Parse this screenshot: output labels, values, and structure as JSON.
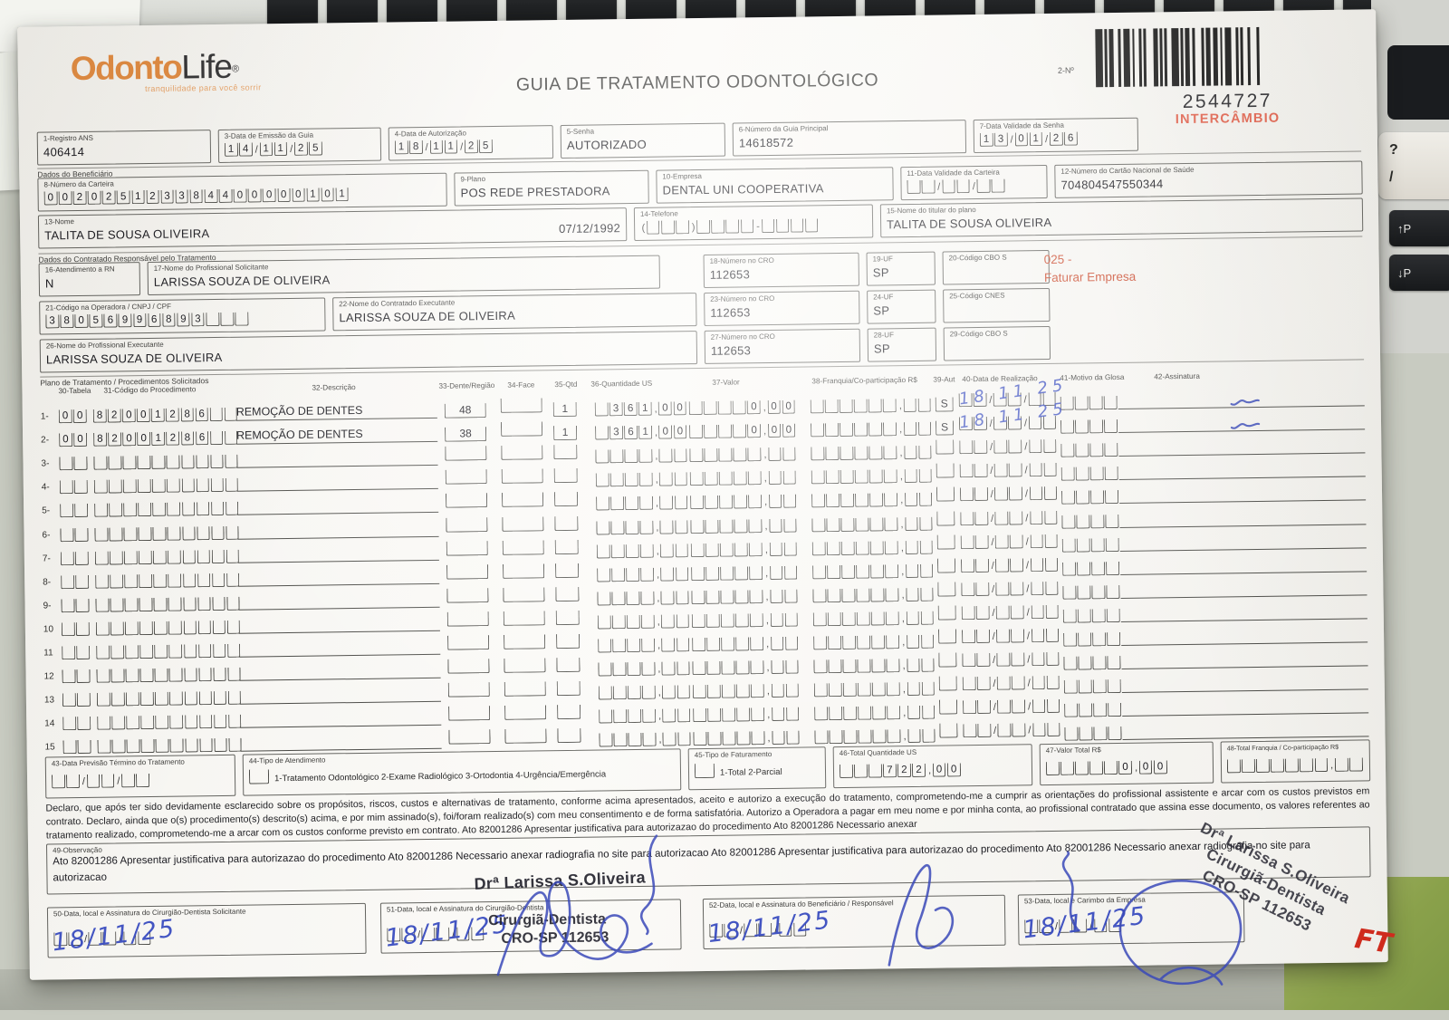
{
  "ambiente": {
    "ft_mark": "FT",
    "tecla_interrogacao": "?",
    "tecla_barra": "/",
    "tecla_pgup": "↑P",
    "tecla_pgdn": "↓P"
  },
  "header": {
    "logo_odonto": "Odonto",
    "logo_life": "Life",
    "logo_reg": "®",
    "logo_tagline": "tranquilidade para você sorrir",
    "title": "GUIA DE TRATAMENTO ODONTOLÓGICO",
    "guide_number_label": "2-Nº",
    "guide_number": "2544727",
    "intercambio": "INTERCÂMBIO"
  },
  "identificacao": {
    "registro_ans": {
      "label": "1-Registro ANS",
      "value": "406414"
    },
    "data_emissao": {
      "label": "3-Data de Emissão da Guia",
      "comb": "14/11/25"
    },
    "data_autorizacao": {
      "label": "4-Data de Autorização",
      "comb": "18/11/25"
    },
    "senha": {
      "label": "5-Senha",
      "value": "AUTORIZADO"
    },
    "guia_principal": {
      "label": "6-Número da Guia Principal",
      "value": "14618572"
    },
    "validade_senha": {
      "label": "7-Data Validade da Senha",
      "comb": "13/01/26"
    }
  },
  "beneficiario": {
    "section_label": "Dados do Beneficiário",
    "carteira": {
      "label": "8-Número da Carteira",
      "comb": "002025123384400000101"
    },
    "plano": {
      "label": "9-Plano",
      "value": "POS REDE PRESTADORA"
    },
    "empresa": {
      "label": "10-Empresa",
      "value": "DENTAL UNI  COOPERATIVA"
    },
    "validade_carteira": {
      "label": "11-Data Validade da Carteira",
      "comb": "__/__/__"
    },
    "cartao_saude": {
      "label": "12-Número do Cartão Nacional de Saúde",
      "value": "704804547550344"
    },
    "nome": {
      "label": "13-Nome",
      "value": "TALITA DE SOUSA OLIVEIRA",
      "nascimento": "07/12/1992"
    },
    "telefone": {
      "label": "14-Telefone",
      "comb": "(___)____-____"
    },
    "titular": {
      "label": "15-Nome do titular do plano",
      "value": "TALITA DE SOUSA OLIVEIRA"
    }
  },
  "contratado": {
    "section_label": "Dados do Contratado Responsável pelo Tratamento",
    "rn": {
      "label": "16-Atendimento a RN",
      "value": "N"
    },
    "solicitante": {
      "label": "17-Nome do Profissional Solicitante",
      "value": "LARISSA SOUZA DE OLIVEIRA"
    },
    "cro18": {
      "label": "18-Número no CRO",
      "value": "112653"
    },
    "uf19": {
      "label": "19-UF",
      "value": "SP"
    },
    "cbo20": {
      "label": "20-Código CBO S",
      "value": ""
    },
    "faturar_code": "025 -",
    "faturar_text": "Faturar Empresa",
    "codigo_operadora": {
      "label": "21-Código na Operadora / CNPJ / CPF",
      "comb": "38056996893___"
    },
    "executante": {
      "label": "22-Nome do Contratado Executante",
      "value": "LARISSA SOUZA DE OLIVEIRA"
    },
    "cro23": {
      "label": "23-Número no CRO",
      "value": "112653"
    },
    "uf24": {
      "label": "24-UF",
      "value": "SP"
    },
    "cnes25": {
      "label": "25-Código CNES",
      "value": ""
    },
    "prof_executante": {
      "label": "26-Nome do Profissional Executante",
      "value": "LARISSA SOUZA DE OLIVEIRA"
    },
    "cro27": {
      "label": "27-Número no CRO",
      "value": "112653"
    },
    "uf28": {
      "label": "28-UF",
      "value": "SP"
    },
    "cbo29": {
      "label": "29-Código CBO S",
      "value": ""
    }
  },
  "tratamento": {
    "section_label": "Plano de Tratamento / Procedimentos Solicitados",
    "headers": [
      "30-Tabela",
      "31-Código do Procedimento",
      "32-Descrição",
      "33-Dente/Região",
      "34-Face",
      "35-Qtd",
      "36-Quantidade US",
      "37-Valor",
      "38-Franquia/Co-participação R$",
      "39-Aut",
      "40-Data de Realização",
      "41-Motivo da Glosa",
      "42-Assinatura"
    ],
    "rows": [
      {
        "num": "1-",
        "tabela": "00",
        "codigo": "82001286__",
        "descricao": "REMOÇÃO DE DENTES",
        "dente": "48",
        "face": "",
        "qtd": "1",
        "qtd_us": "_361,00",
        "valor": "____0,00",
        "franquia": "______,__",
        "aut": "S",
        "data": "__/__/__",
        "data_manuscrita": "18 11 25",
        "glosa": "____",
        "assinado": true
      },
      {
        "num": "2-",
        "tabela": "00",
        "codigo": "82001286__",
        "descricao": "REMOÇÃO DE DENTES",
        "dente": "38",
        "face": "",
        "qtd": "1",
        "qtd_us": "_361,00",
        "valor": "____0,00",
        "franquia": "______,__",
        "aut": "S",
        "data": "__/__/__",
        "data_manuscrita": "18 11 25",
        "glosa": "____",
        "assinado": true
      },
      {
        "num": "3-",
        "tabela": "__",
        "codigo": "__________",
        "descricao": "",
        "dente": "",
        "face": "",
        "qtd": "",
        "qtd_us": "____,__",
        "valor": "_____,__",
        "franquia": "______,__",
        "aut": "",
        "data": "__/__/__",
        "data_manuscrita": "",
        "glosa": "____",
        "assinado": false
      },
      {
        "num": "4-",
        "tabela": "__",
        "codigo": "__________",
        "descricao": "",
        "dente": "",
        "face": "",
        "qtd": "",
        "qtd_us": "____,__",
        "valor": "_____,__",
        "franquia": "______,__",
        "aut": "",
        "data": "__/__/__",
        "data_manuscrita": "",
        "glosa": "____",
        "assinado": false
      },
      {
        "num": "5-",
        "tabela": "__",
        "codigo": "__________",
        "descricao": "",
        "dente": "",
        "face": "",
        "qtd": "",
        "qtd_us": "____,__",
        "valor": "_____,__",
        "franquia": "______,__",
        "aut": "",
        "data": "__/__/__",
        "data_manuscrita": "",
        "glosa": "____",
        "assinado": false
      },
      {
        "num": "6-",
        "tabela": "__",
        "codigo": "__________",
        "descricao": "",
        "dente": "",
        "face": "",
        "qtd": "",
        "qtd_us": "____,__",
        "valor": "_____,__",
        "franquia": "______,__",
        "aut": "",
        "data": "__/__/__",
        "data_manuscrita": "",
        "glosa": "____",
        "assinado": false
      },
      {
        "num": "7-",
        "tabela": "__",
        "codigo": "__________",
        "descricao": "",
        "dente": "",
        "face": "",
        "qtd": "",
        "qtd_us": "____,__",
        "valor": "_____,__",
        "franquia": "______,__",
        "aut": "",
        "data": "__/__/__",
        "data_manuscrita": "",
        "glosa": "____",
        "assinado": false
      },
      {
        "num": "8-",
        "tabela": "__",
        "codigo": "__________",
        "descricao": "",
        "dente": "",
        "face": "",
        "qtd": "",
        "qtd_us": "____,__",
        "valor": "_____,__",
        "franquia": "______,__",
        "aut": "",
        "data": "__/__/__",
        "data_manuscrita": "",
        "glosa": "____",
        "assinado": false
      },
      {
        "num": "9-",
        "tabela": "__",
        "codigo": "__________",
        "descricao": "",
        "dente": "",
        "face": "",
        "qtd": "",
        "qtd_us": "____,__",
        "valor": "_____,__",
        "franquia": "______,__",
        "aut": "",
        "data": "__/__/__",
        "data_manuscrita": "",
        "glosa": "____",
        "assinado": false
      },
      {
        "num": "10",
        "tabela": "__",
        "codigo": "__________",
        "descricao": "",
        "dente": "",
        "face": "",
        "qtd": "",
        "qtd_us": "____,__",
        "valor": "_____,__",
        "franquia": "______,__",
        "aut": "",
        "data": "__/__/__",
        "data_manuscrita": "",
        "glosa": "____",
        "assinado": false
      },
      {
        "num": "11",
        "tabela": "__",
        "codigo": "__________",
        "descricao": "",
        "dente": "",
        "face": "",
        "qtd": "",
        "qtd_us": "____,__",
        "valor": "_____,__",
        "franquia": "______,__",
        "aut": "",
        "data": "__/__/__",
        "data_manuscrita": "",
        "glosa": "____",
        "assinado": false
      },
      {
        "num": "12",
        "tabela": "__",
        "codigo": "__________",
        "descricao": "",
        "dente": "",
        "face": "",
        "qtd": "",
        "qtd_us": "____,__",
        "valor": "_____,__",
        "franquia": "______,__",
        "aut": "",
        "data": "__/__/__",
        "data_manuscrita": "",
        "glosa": "____",
        "assinado": false
      },
      {
        "num": "13",
        "tabela": "__",
        "codigo": "__________",
        "descricao": "",
        "dente": "",
        "face": "",
        "qtd": "",
        "qtd_us": "____,__",
        "valor": "_____,__",
        "franquia": "______,__",
        "aut": "",
        "data": "__/__/__",
        "data_manuscrita": "",
        "glosa": "____",
        "assinado": false
      },
      {
        "num": "14",
        "tabela": "__",
        "codigo": "__________",
        "descricao": "",
        "dente": "",
        "face": "",
        "qtd": "",
        "qtd_us": "____,__",
        "valor": "_____,__",
        "franquia": "______,__",
        "aut": "",
        "data": "__/__/__",
        "data_manuscrita": "",
        "glosa": "____",
        "assinado": false
      },
      {
        "num": "15",
        "tabela": "__",
        "codigo": "__________",
        "descricao": "",
        "dente": "",
        "face": "",
        "qtd": "",
        "qtd_us": "____,__",
        "valor": "_____,__",
        "franquia": "______,__",
        "aut": "",
        "data": "__/__/__",
        "data_manuscrita": "",
        "glosa": "____",
        "assinado": false
      }
    ]
  },
  "totais": {
    "previsao": {
      "label": "43-Data Previsão Término do Tratamento",
      "comb": "__/__/__"
    },
    "tipo_atendimento": {
      "label": "44-Tipo de Atendimento",
      "options": "1-Tratamento Odontológico  2-Exame Radiológico  3-Ortodontia  4-Urgência/Emergência"
    },
    "tipo_faturamento": {
      "label": "45-Tipo de Faturamento",
      "options": "1-Total  2-Parcial"
    },
    "total_us": {
      "label": "46-Total Quantidade US",
      "comb": "___722,00"
    },
    "valor_total": {
      "label": "47-Valor Total R$",
      "comb": "_____0,00"
    },
    "total_franquia": {
      "label": "48-Total Franquia / Co-participação R$",
      "comb": "_______,__"
    }
  },
  "declaracao": "Declaro, que após ter sido devidamente esclarecido sobre os propósitos, riscos, custos e alternativas de tratamento, conforme acima apresentados, aceito e autorizo a execução do tratamento, comprometendo-me a cumprir as orientações do profissional assistente e arcar com os custos previstos em contrato. Declaro, ainda que o(s) procedimento(s) descrito(s) acima, e por mim assinado(s), foi/foram realizado(s) com meu consentimento e de forma satisfatória. Autorizo a Operadora a pagar em meu nome e por minha conta, ao profissional contratado que assina esse documento, os valores referentes ao tratamento realizado, comprometendo-me a arcar com os custos conforme previsto em contrato.",
  "declaracao_overflow": "Ato 82001286 Apresentar justificativa para autorizazao do procedimento    Ato 82001286 Necessario anexar",
  "observacao": {
    "label": "49-Observação",
    "text": "Ato 82001286 Apresentar justificativa para autorizazao do procedimento    Ato 82001286 Necessario anexar radiografia no site para autorizacao    Ato 82001286 Apresentar justificativa para autorizazao do procedimento    Ato 82001286 Necessario anexar radiografia no site para autorizacao"
  },
  "carimbo": {
    "nome": "Drª Larissa S.Oliveira",
    "titulo": "Cirurgiã-Dentista",
    "cro": "CRO-SP 112653"
  },
  "assinaturas": {
    "s50": {
      "label": "50-Data, local e Assinatura do Cirurgião-Dentista Solicitante",
      "comb": "__/__/__",
      "data_manuscrita": "18/11/25"
    },
    "s51": {
      "label": "51-Data, local e Assinatura do Cirurgião-Dentista",
      "comb": "__/__/__",
      "data_manuscrita": "18/11/25"
    },
    "s52": {
      "label": "52-Data, local e Assinatura do Beneficiário / Responsável",
      "comb": "__/__/__",
      "data_manuscrita": "18/11/25"
    },
    "s53": {
      "label": "53-Data, local e Carimbo da Empresa",
      "comb": "__/__/__",
      "data_manuscrita": "18/11/25"
    }
  }
}
